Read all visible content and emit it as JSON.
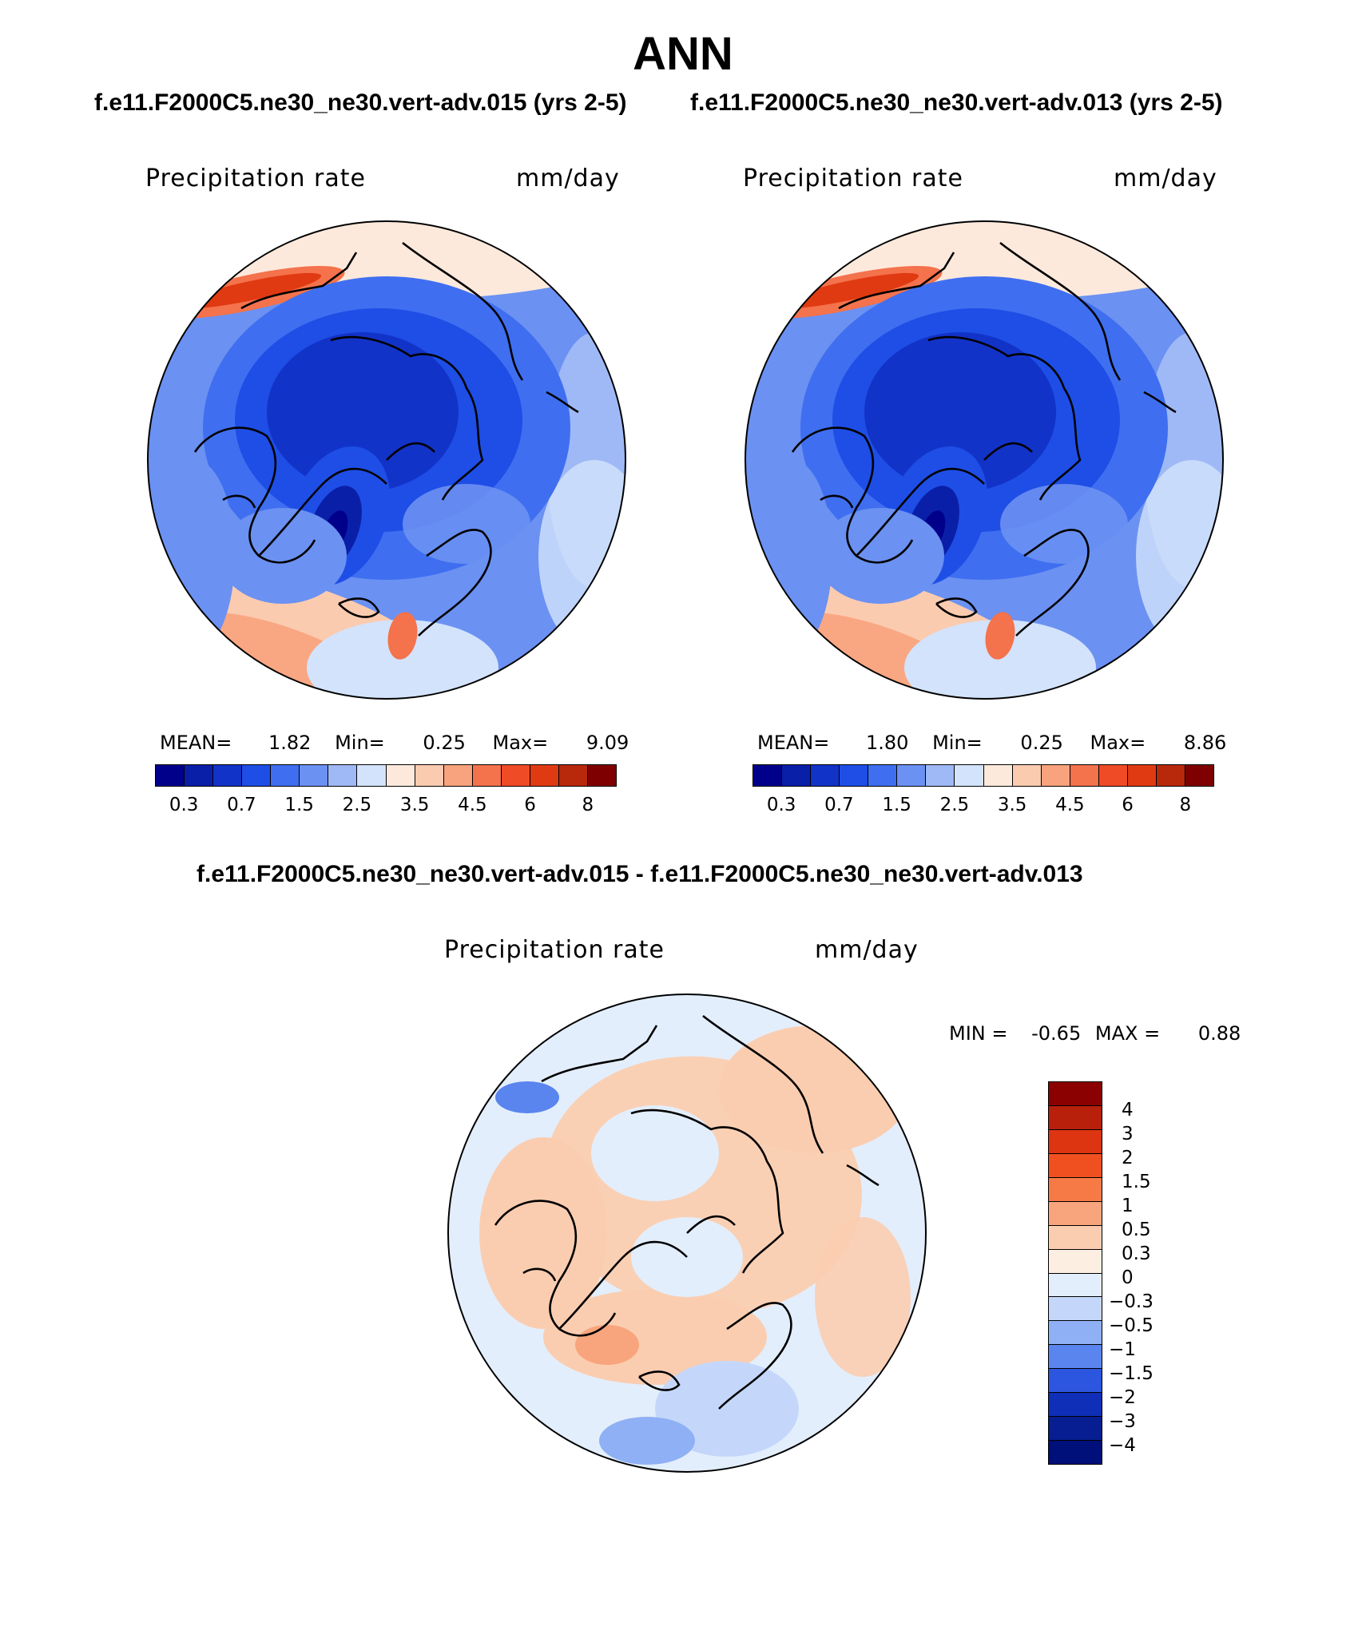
{
  "header": {
    "title": "ANN",
    "left_case": "f.e11.F2000C5.ne30_ne30.vert-adv.015 (yrs 2-5)",
    "right_case": "f.e11.F2000C5.ne30_ne30.vert-adv.013 (yrs 2-5)",
    "diff_title": "f.e11.F2000C5.ne30_ne30.vert-adv.015 - f.e11.F2000C5.ne30_ne30.vert-adv.013"
  },
  "chart_data": [
    {
      "type": "heatmap",
      "projection": "north-polar-stereographic",
      "variable": "Precipitation rate",
      "units": "mm/day",
      "stats": {
        "mean_label": "MEAN=",
        "mean": "1.82",
        "min_label": "Min=",
        "min": "0.25",
        "max_label": "Max=",
        "max": "9.09"
      },
      "colorbar": {
        "levels": [
          "0.3",
          "0.7",
          "1.5",
          "2.5",
          "3.5",
          "4.5",
          "6",
          "8"
        ],
        "colors": [
          "#00008b",
          "#0a1fa8",
          "#1233c8",
          "#1e4ee6",
          "#3f6ff0",
          "#6b91f2",
          "#9fb9f6",
          "#d3e3fb",
          "#fde9dc",
          "#fbcbb0",
          "#f8a37d",
          "#f4724c",
          "#ef4b26",
          "#e03a12",
          "#b8280a",
          "#7f0000"
        ]
      }
    },
    {
      "type": "heatmap",
      "projection": "north-polar-stereographic",
      "variable": "Precipitation rate",
      "units": "mm/day",
      "stats": {
        "mean_label": "MEAN=",
        "mean": "1.80",
        "min_label": "Min=",
        "min": "0.25",
        "max_label": "Max=",
        "max": "8.86"
      },
      "colorbar": {
        "levels": [
          "0.3",
          "0.7",
          "1.5",
          "2.5",
          "3.5",
          "4.5",
          "6",
          "8"
        ],
        "colors": [
          "#00008b",
          "#0a1fa8",
          "#1233c8",
          "#1e4ee6",
          "#3f6ff0",
          "#6b91f2",
          "#9fb9f6",
          "#d3e3fb",
          "#fde9dc",
          "#fbcbb0",
          "#f8a37d",
          "#f4724c",
          "#ef4b26",
          "#e03a12",
          "#b8280a",
          "#7f0000"
        ]
      }
    },
    {
      "type": "heatmap",
      "projection": "north-polar-stereographic",
      "variable": "Precipitation rate",
      "units": "mm/day",
      "stats": {
        "min_label": "MIN =",
        "min": "-0.65",
        "max_label": "MAX =",
        "max": "0.88"
      },
      "colorbar": {
        "levels": [
          "4",
          "3",
          "2",
          "1.5",
          "1",
          "0.5",
          "0.3",
          "0",
          "−0.3",
          "−0.5",
          "−1",
          "−1.5",
          "−2",
          "−3",
          "−4"
        ],
        "colors": [
          "#8b0000",
          "#b8200c",
          "#dd3512",
          "#f05020",
          "#f57a45",
          "#f8a57d",
          "#fbcdb0",
          "#fdeee2",
          "#e3eefc",
          "#c4d7fa",
          "#8fb0f4",
          "#5a84ee",
          "#2c56e0",
          "#0f2fb8",
          "#061e92",
          "#00107a"
        ]
      }
    }
  ]
}
